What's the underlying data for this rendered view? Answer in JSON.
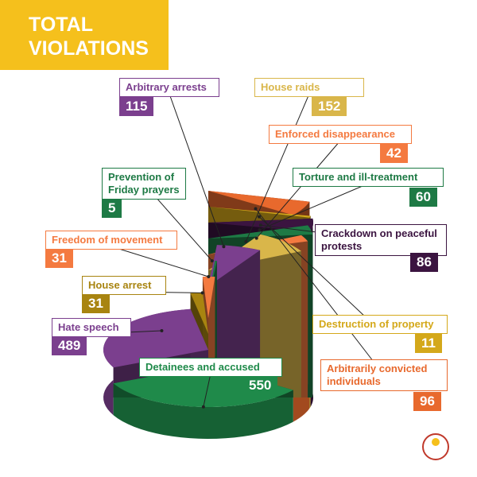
{
  "chart_data": {
    "type": "pie",
    "title": "TOTAL VIOLATIONS",
    "categories": [
      "Arbitrary arrests",
      "House raids",
      "Enforced disappearance",
      "Torture and ill-treatment",
      "Prevention of Friday prayers",
      "Crackdown on peaceful protests",
      "Freedom of movement",
      "House arrest",
      "Destruction of property",
      "Hate speech",
      "Detainees and accused",
      "Arbitrarily convicted individuals"
    ],
    "values": [
      115,
      152,
      42,
      60,
      5,
      86,
      31,
      31,
      11,
      489,
      550,
      96
    ],
    "colors": [
      "#7b3f8e",
      "#d9b64a",
      "#f47a40",
      "#1e7a45",
      "#1e7a45",
      "#3b1440",
      "#f47a40",
      "#a88410",
      "#d4a81a",
      "#7b3f8e",
      "#1f8a4a",
      "#e8692d"
    ]
  }
}
